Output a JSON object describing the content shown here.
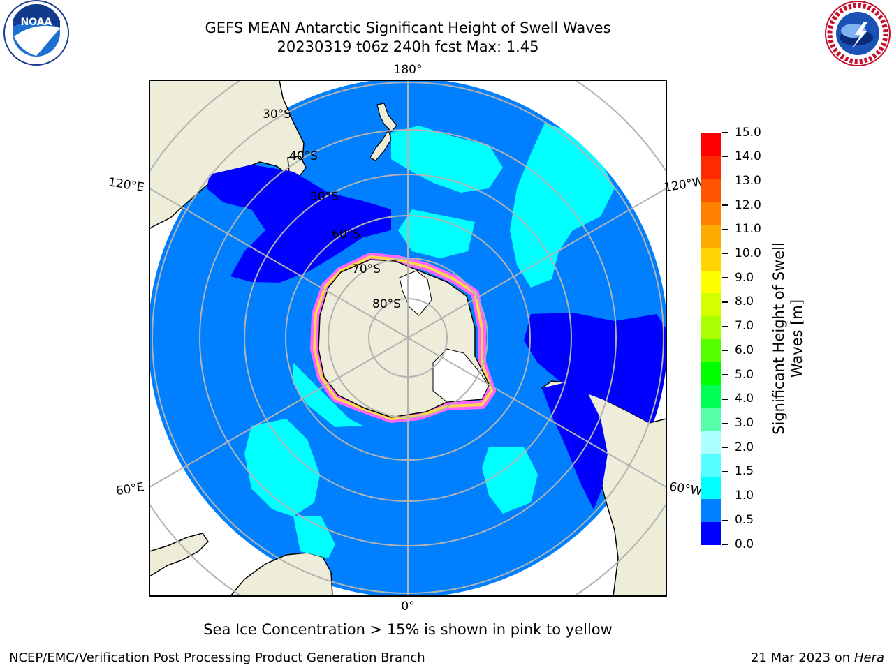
{
  "header": {
    "title_line1": "GEFS MEAN Antarctic Significant Height of Swell Waves",
    "title_line2": "20230319 t06z 240h fcst   Max: 1.45"
  },
  "logos": {
    "left": "noaa-logo",
    "right": "national-weather-service-logo"
  },
  "map": {
    "projection": "south-polar-stereographic",
    "longitude_labels": {
      "top": "180°",
      "bottom": "0°",
      "upper_left": "120°E",
      "upper_right": "120°W",
      "lower_left": "60°E",
      "lower_right": "60°W"
    },
    "latitude_labels": [
      "30°S",
      "40°S",
      "50°S",
      "60°S",
      "70°S",
      "80°S"
    ],
    "colors": {
      "land": "#eeedd9",
      "ocean_default": "#0080ff",
      "swell_low": "#0000ff",
      "swell_mid": "#00ffff",
      "ice_pink": "#ff66ff",
      "ice_magenta": "#e800e8",
      "ice_yellow": "#ffd74a",
      "gridline": "#b3b3b3"
    }
  },
  "colorbar": {
    "title": "Significant Height of Swell Waves [m]",
    "ticks": [
      "15.0",
      "14.0",
      "13.0",
      "12.0",
      "11.0",
      "10.0",
      "9.0",
      "8.0",
      "7.0",
      "6.0",
      "5.0",
      "4.0",
      "3.0",
      "2.0",
      "1.5",
      "1.0",
      "0.5",
      "0.0"
    ],
    "colors_top_to_bottom": [
      "#ff0000",
      "#ff2a00",
      "#ff5500",
      "#ff8000",
      "#ffaa00",
      "#ffd400",
      "#ffff00",
      "#d4ff00",
      "#aaff00",
      "#55ff00",
      "#00ff00",
      "#00ff55",
      "#55ffaa",
      "#aaffff",
      "#55ffff",
      "#00ffff",
      "#0080ff",
      "#0000ff"
    ]
  },
  "notes": {
    "sea_ice": "Sea Ice Concentration > 15% is shown in pink to yellow"
  },
  "footer": {
    "left": "NCEP/EMC/Verification Post Processing Product Generation Branch",
    "right_date": "21 Mar 2023 on",
    "right_machine": "Hera"
  }
}
